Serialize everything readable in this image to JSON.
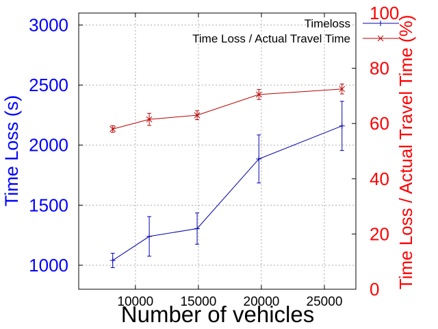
{
  "chart_data": {
    "type": "line",
    "xlabel": "Number of vehicles",
    "ylabel": "Time Loss (s)",
    "y2label": "Time Loss / Actual Travel Time (%)",
    "xlim": [
      5500,
      27500
    ],
    "ylim": [
      800,
      3100
    ],
    "y2lim": [
      0,
      100
    ],
    "x_ticks": [
      10000,
      15000,
      20000,
      25000
    ],
    "y_ticks": [
      1000,
      1500,
      2000,
      2500,
      3000
    ],
    "y2_ticks": [
      0,
      20,
      40,
      60,
      80,
      100
    ],
    "grid": true,
    "legend_position": "top-right",
    "colors": {
      "left_axis": "#0000ff",
      "right_axis": "#ff0000",
      "series1": "#0000aa",
      "series2": "#bb0000"
    },
    "series": [
      {
        "name": "Timeloss",
        "axis": "left",
        "marker": "plus",
        "x": [
          8200,
          11100,
          14900,
          19800,
          26400
        ],
        "y": [
          1040,
          1240,
          1305,
          1885,
          2160
        ],
        "err": [
          60,
          165,
          130,
          200,
          205
        ]
      },
      {
        "name": "Time Loss / Actual Travel Time",
        "axis": "right",
        "marker": "cross",
        "x": [
          8200,
          11100,
          14900,
          19800,
          26400
        ],
        "y": [
          58,
          61.5,
          63,
          70.5,
          72.5
        ],
        "err": [
          1.2,
          2.2,
          1.6,
          1.8,
          1.8
        ]
      }
    ]
  }
}
